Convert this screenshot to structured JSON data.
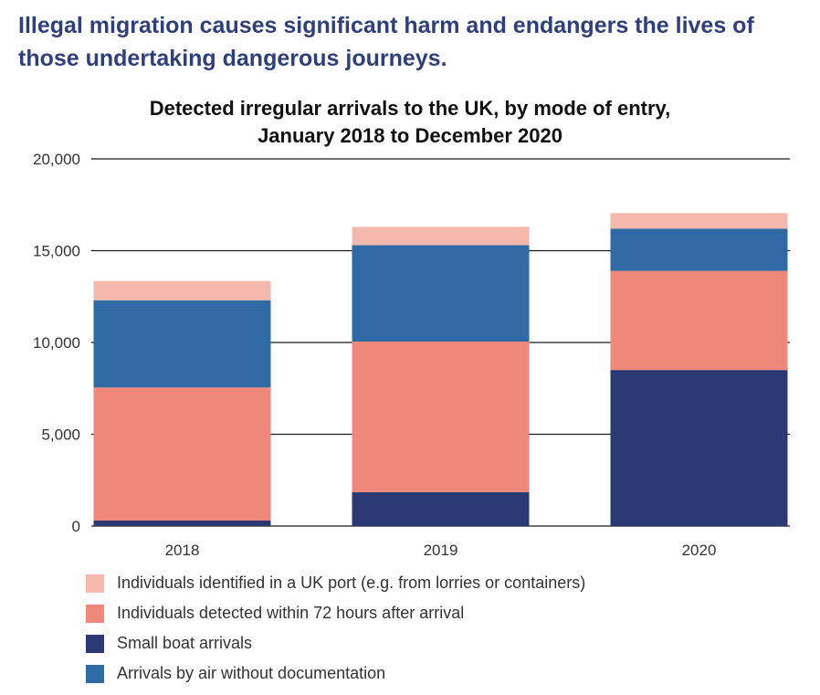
{
  "headline": "Illegal migration causes significant harm and endangers the lives of those undertaking dangerous journeys.",
  "chart_data": {
    "type": "bar",
    "stacked": true,
    "title": "Detected irregular arrivals to the UK, by mode of entry, January 2018 to December 2020",
    "title_lines": [
      "Detected irregular arrivals to the UK, by mode of entry,",
      "January 2018 to December 2020"
    ],
    "xlabel": "",
    "ylabel": "",
    "ylim": [
      0,
      20000
    ],
    "yticks": [
      0,
      5000,
      10000,
      15000,
      20000
    ],
    "ytick_labels": [
      "0",
      "5,000",
      "10,000",
      "15,000",
      "20,000"
    ],
    "grid": "horizontal",
    "legend_position": "bottom",
    "categories": [
      "2018",
      "2019",
      "2020"
    ],
    "series": [
      {
        "name": "Small boat arrivals",
        "color": "#2b3a75",
        "values": [
          300,
          1850,
          8500
        ]
      },
      {
        "name": "Individuals detected within 72 hours after arrival",
        "color": "#ef877a",
        "values": [
          7250,
          8200,
          5400
        ]
      },
      {
        "name": "Arrivals by air without documentation",
        "color": "#2f6aa4",
        "values": [
          4750,
          5250,
          2300
        ]
      },
      {
        "name": "Individuals identified in a UK port (e.g. from lorries or containers)",
        "color": "#f5b8ac",
        "values": [
          1050,
          1000,
          850
        ]
      }
    ],
    "legend_order": [
      "Individuals identified in a UK port (e.g. from lorries or containers)",
      "Individuals detected within 72 hours after arrival",
      "Small boat arrivals",
      "Arrivals by air without documentation"
    ]
  }
}
